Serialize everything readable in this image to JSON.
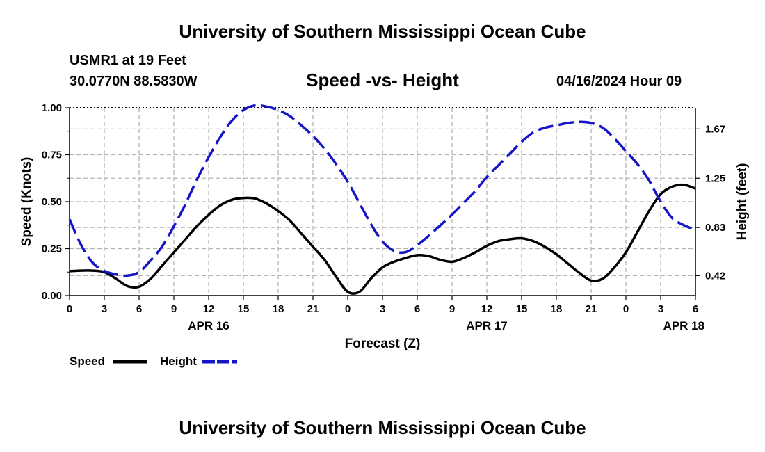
{
  "page": {
    "main_title": "University of Southern Mississippi Ocean Cube",
    "station": "USMR1 at 19 Feet",
    "coords": "30.0770N  88.5830W",
    "chart_title": "Speed -vs- Height",
    "datetime": "04/16/2024 Hour 09",
    "footer_title": "University of Southern Mississippi Ocean Cube"
  },
  "colors": {
    "speed": "#000000",
    "height": "#1414c8",
    "grid": "#b4b4b4"
  },
  "chart_data": {
    "type": "line",
    "title": "Speed -vs- Height",
    "xlabel": "Forecast (Z)",
    "ylabel": "Speed (Knots)",
    "y2label": "Height (feet)",
    "x_unit": "hours since APR 16 00Z",
    "xlim": [
      0,
      54
    ],
    "ylim": [
      0,
      1
    ],
    "y2lim": [
      0.25,
      1.85
    ],
    "grid": true,
    "x_ticks": [
      0,
      3,
      6,
      9,
      12,
      15,
      18,
      21,
      24,
      27,
      30,
      33,
      36,
      39,
      42,
      45,
      48,
      51,
      54
    ],
    "x_tick_labels": [
      "0",
      "3",
      "6",
      "9",
      "12",
      "15",
      "18",
      "21",
      "0",
      "3",
      "6",
      "9",
      "12",
      "15",
      "18",
      "21",
      "0",
      "3",
      "6"
    ],
    "y_ticks": [
      0,
      0.25,
      0.5,
      0.75,
      1.0
    ],
    "y_tick_labels": [
      "0.00",
      "0.25",
      "0.50",
      "0.75",
      "1.00"
    ],
    "y2_ticks": [
      0.42,
      0.83,
      1.25,
      1.67
    ],
    "y2_tick_labels": [
      "0.42",
      "0.83",
      "1.25",
      "1.67"
    ],
    "date_labels": [
      {
        "x": 12,
        "label": "APR 16"
      },
      {
        "x": 36,
        "label": "APR 17"
      },
      {
        "x": 53,
        "label": "APR 18"
      }
    ],
    "legend": [
      {
        "name": "Speed",
        "style": "solid"
      },
      {
        "name": "Height",
        "style": "dashed"
      }
    ],
    "legend_placement": "bottom-left",
    "series": [
      {
        "name": "Speed",
        "axis": "left",
        "style": "solid",
        "x": [
          0,
          1,
          2,
          3,
          4,
          5,
          6,
          7,
          8,
          9,
          10,
          11,
          12,
          13,
          14,
          15,
          16,
          17,
          18,
          19,
          20,
          21,
          22,
          23,
          24,
          25,
          26,
          27,
          28,
          29,
          30,
          31,
          32,
          33,
          34,
          35,
          36,
          37,
          38,
          39,
          40,
          41,
          42,
          43,
          44,
          45,
          46,
          47,
          48,
          49,
          50,
          51,
          52,
          53,
          54
        ],
        "values": [
          0.13,
          0.133,
          0.133,
          0.125,
          0.09,
          0.05,
          0.047,
          0.09,
          0.16,
          0.23,
          0.3,
          0.37,
          0.43,
          0.48,
          0.51,
          0.52,
          0.517,
          0.49,
          0.45,
          0.4,
          0.33,
          0.26,
          0.19,
          0.1,
          0.02,
          0.02,
          0.09,
          0.15,
          0.18,
          0.2,
          0.215,
          0.21,
          0.19,
          0.18,
          0.2,
          0.23,
          0.265,
          0.29,
          0.3,
          0.305,
          0.29,
          0.26,
          0.22,
          0.17,
          0.12,
          0.08,
          0.09,
          0.15,
          0.23,
          0.34,
          0.45,
          0.54,
          0.58,
          0.59,
          0.57
        ]
      },
      {
        "name": "Height",
        "axis": "right",
        "style": "dashed",
        "x": [
          0,
          1,
          2,
          3,
          4,
          5,
          6,
          7,
          8,
          9,
          10,
          11,
          12,
          13,
          14,
          15,
          16,
          17,
          18,
          19,
          20,
          21,
          22,
          23,
          24,
          25,
          26,
          27,
          28,
          29,
          30,
          31,
          32,
          33,
          34,
          35,
          36,
          37,
          38,
          39,
          40,
          41,
          42,
          43,
          44,
          45,
          46,
          47,
          48,
          49,
          50,
          51,
          52,
          53,
          54
        ],
        "values": [
          0.9,
          0.68,
          0.53,
          0.46,
          0.43,
          0.42,
          0.45,
          0.55,
          0.67,
          0.84,
          1.03,
          1.24,
          1.43,
          1.6,
          1.74,
          1.83,
          1.87,
          1.86,
          1.83,
          1.78,
          1.7,
          1.61,
          1.5,
          1.37,
          1.22,
          1.04,
          0.86,
          0.71,
          0.63,
          0.62,
          0.68,
          0.76,
          0.85,
          0.94,
          1.04,
          1.14,
          1.26,
          1.36,
          1.46,
          1.56,
          1.64,
          1.68,
          1.7,
          1.72,
          1.73,
          1.72,
          1.68,
          1.59,
          1.48,
          1.37,
          1.23,
          1.05,
          0.91,
          0.85,
          0.81
        ]
      }
    ]
  }
}
